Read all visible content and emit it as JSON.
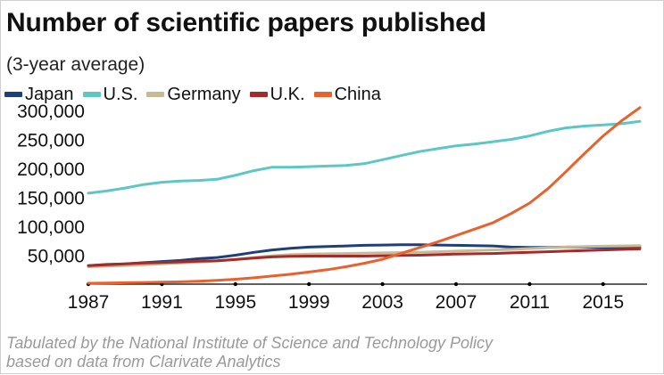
{
  "title": "Number of scientific papers published",
  "subtitle": "(3-year average)",
  "source_lines": [
    "Tabulated by the National Institute of Science and Technology Policy",
    "based on data from Clarivate Analytics"
  ],
  "chart_data": {
    "type": "line",
    "title": "Number of scientific papers published",
    "subtitle": "(3-year average)",
    "xlim": [
      1987,
      2017
    ],
    "ylim": [
      0,
      300000
    ],
    "yticks": [
      50000,
      100000,
      150000,
      200000,
      250000,
      300000
    ],
    "ytick_labels": [
      "50,000",
      "100,000",
      "150,000",
      "200,000",
      "250,000",
      "300,000"
    ],
    "xticks": [
      1987,
      1991,
      1995,
      1999,
      2003,
      2007,
      2011,
      2015
    ],
    "xtick_labels": [
      "1987",
      "1991",
      "1995",
      "1999",
      "2003",
      "2007",
      "2011",
      "2015"
    ],
    "grid": false,
    "legend_position": "top-left",
    "series": [
      {
        "name": "Japan",
        "color": "#1f3f7a",
        "x": [
          1987,
          1988,
          1989,
          1990,
          1991,
          1992,
          1993,
          1994,
          1995,
          1996,
          1997,
          1998,
          1999,
          2000,
          2001,
          2002,
          2003,
          2004,
          2005,
          2006,
          2007,
          2008,
          2009,
          2010,
          2011,
          2012,
          2013,
          2014,
          2015,
          2016,
          2017
        ],
        "y": [
          32000,
          34000,
          35000,
          37000,
          39000,
          41000,
          44000,
          46000,
          50000,
          55000,
          59000,
          62000,
          64000,
          65000,
          66000,
          67000,
          67500,
          68000,
          68000,
          67500,
          67000,
          66500,
          66000,
          64000,
          63500,
          63500,
          64000,
          64000,
          63500,
          64000,
          64500
        ]
      },
      {
        "name": "U.S.",
        "color": "#5cc7c4",
        "x": [
          1987,
          1988,
          1989,
          1990,
          1991,
          1992,
          1993,
          1994,
          1995,
          1996,
          1997,
          1998,
          1999,
          2000,
          2001,
          2002,
          2003,
          2004,
          2005,
          2006,
          2007,
          2008,
          2009,
          2010,
          2011,
          2012,
          2013,
          2014,
          2015,
          2016,
          2017
        ],
        "y": [
          157000,
          161000,
          166000,
          172000,
          176000,
          178000,
          179000,
          181000,
          188000,
          196000,
          202000,
          202000,
          203000,
          204000,
          205000,
          208000,
          215000,
          222000,
          229000,
          234000,
          239000,
          242000,
          246000,
          250000,
          256000,
          264000,
          270000,
          273000,
          275000,
          277000,
          281000
        ]
      },
      {
        "name": "Germany",
        "color": "#c8b996",
        "x": [
          1987,
          1988,
          1989,
          1990,
          1991,
          1992,
          1993,
          1994,
          1995,
          1996,
          1997,
          1998,
          1999,
          2000,
          2001,
          2002,
          2003,
          2004,
          2005,
          2006,
          2007,
          2008,
          2009,
          2010,
          2011,
          2012,
          2013,
          2014,
          2015,
          2016,
          2017
        ],
        "y": [
          30000,
          31000,
          32000,
          33500,
          35000,
          36500,
          38000,
          40000,
          43000,
          46000,
          49000,
          51000,
          52000,
          52500,
          53000,
          53500,
          54000,
          54500,
          55000,
          56000,
          57000,
          58000,
          59000,
          60000,
          61500,
          63000,
          64000,
          65000,
          65500,
          66000,
          66500
        ]
      },
      {
        "name": "U.K.",
        "color": "#a52a2a",
        "x": [
          1987,
          1988,
          1989,
          1990,
          1991,
          1992,
          1993,
          1994,
          1995,
          1996,
          1997,
          1998,
          1999,
          2000,
          2001,
          2002,
          2003,
          2004,
          2005,
          2006,
          2007,
          2008,
          2009,
          2010,
          2011,
          2012,
          2013,
          2014,
          2015,
          2016,
          2017
        ],
        "y": [
          32000,
          33500,
          35000,
          36500,
          37500,
          38500,
          39500,
          40500,
          42500,
          45000,
          47000,
          48000,
          48500,
          48500,
          48500,
          48500,
          49000,
          49500,
          50000,
          51000,
          52000,
          52500,
          53000,
          54000,
          55000,
          56000,
          57000,
          58000,
          59000,
          60000,
          61000
        ]
      },
      {
        "name": "China",
        "color": "#e9622e",
        "x": [
          1987,
          1988,
          1989,
          1990,
          1991,
          1992,
          1993,
          1994,
          1995,
          1996,
          1997,
          1998,
          1999,
          2000,
          2001,
          2002,
          2003,
          2004,
          2005,
          2006,
          2007,
          2008,
          2009,
          2010,
          2011,
          2012,
          2013,
          2014,
          2015,
          2016,
          2017
        ],
        "y": [
          1500,
          2000,
          2500,
          3000,
          3500,
          4000,
          5000,
          6500,
          8500,
          11000,
          14000,
          17000,
          21000,
          25000,
          30000,
          36000,
          43000,
          53000,
          63000,
          73000,
          84000,
          95000,
          106000,
          122000,
          140000,
          165000,
          195000,
          226000,
          256000,
          282000,
          305000
        ]
      }
    ]
  }
}
